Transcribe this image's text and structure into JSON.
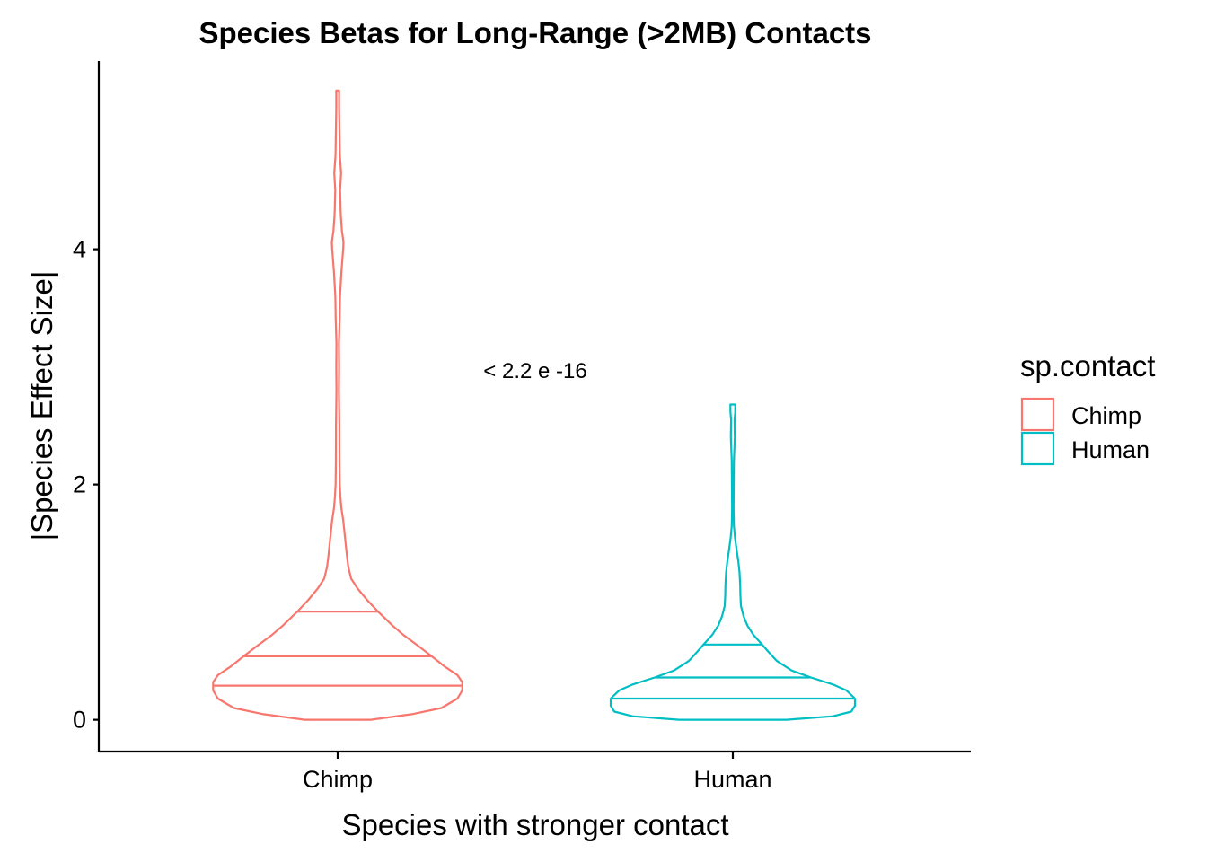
{
  "chart_data": {
    "type": "violin",
    "title": "Species Betas for Long-Range (>2MB) Contacts",
    "xlabel": "Species with stronger contact",
    "ylabel": "|Species Effect Size|",
    "categories": [
      "Chimp",
      "Human"
    ],
    "ylim": [
      -0.27,
      5.6
    ],
    "yticks": [
      0,
      2,
      4
    ],
    "grid": false,
    "annotation": "< 2.2 e -16",
    "legend": {
      "title": "sp.contact",
      "position": "right",
      "entries": [
        {
          "label": "Chimp",
          "color": "#F8766D"
        },
        {
          "label": "Human",
          "color": "#00BFC4"
        }
      ]
    },
    "series": [
      {
        "name": "Chimp",
        "color": "#F8766D",
        "quantiles": [
          0.29,
          0.54,
          0.92
        ],
        "max": 5.35,
        "profile": [
          [
            0.0,
            0.27
          ],
          [
            0.05,
            0.62
          ],
          [
            0.1,
            0.85
          ],
          [
            0.18,
            0.98
          ],
          [
            0.25,
            1.02
          ],
          [
            0.32,
            1.02
          ],
          [
            0.38,
            0.98
          ],
          [
            0.45,
            0.88
          ],
          [
            0.54,
            0.77
          ],
          [
            0.62,
            0.67
          ],
          [
            0.72,
            0.54
          ],
          [
            0.8,
            0.45
          ],
          [
            0.92,
            0.33
          ],
          [
            1.02,
            0.24
          ],
          [
            1.12,
            0.16
          ],
          [
            1.2,
            0.11
          ],
          [
            1.3,
            0.087
          ],
          [
            1.4,
            0.075
          ],
          [
            1.55,
            0.06
          ],
          [
            1.7,
            0.045
          ],
          [
            1.8,
            0.03
          ],
          [
            1.9,
            0.022
          ],
          [
            2.0,
            0.017
          ],
          [
            2.2,
            0.015
          ],
          [
            2.5,
            0.014
          ],
          [
            2.8,
            0.01
          ],
          [
            3.0,
            0.012
          ],
          [
            3.2,
            0.01
          ],
          [
            3.4,
            0.016
          ],
          [
            3.6,
            0.019
          ],
          [
            3.8,
            0.03
          ],
          [
            4.0,
            0.045
          ],
          [
            4.06,
            0.048
          ],
          [
            4.15,
            0.035
          ],
          [
            4.3,
            0.025
          ],
          [
            4.5,
            0.02
          ],
          [
            4.65,
            0.028
          ],
          [
            4.8,
            0.018
          ],
          [
            5.0,
            0.015
          ],
          [
            5.2,
            0.012
          ],
          [
            5.35,
            0.012
          ]
        ]
      },
      {
        "name": "Human",
        "color": "#00BFC4",
        "quantiles": [
          0.18,
          0.36,
          0.64
        ],
        "max": 2.68,
        "profile": [
          [
            0.0,
            0.44
          ],
          [
            0.03,
            0.82
          ],
          [
            0.07,
            0.97
          ],
          [
            0.12,
            1.0
          ],
          [
            0.18,
            1.0
          ],
          [
            0.25,
            0.93
          ],
          [
            0.3,
            0.82
          ],
          [
            0.36,
            0.64
          ],
          [
            0.42,
            0.48
          ],
          [
            0.5,
            0.36
          ],
          [
            0.58,
            0.29
          ],
          [
            0.64,
            0.24
          ],
          [
            0.72,
            0.17
          ],
          [
            0.8,
            0.12
          ],
          [
            0.88,
            0.088
          ],
          [
            0.97,
            0.066
          ],
          [
            1.07,
            0.062
          ],
          [
            1.15,
            0.06
          ],
          [
            1.25,
            0.055
          ],
          [
            1.35,
            0.045
          ],
          [
            1.45,
            0.03
          ],
          [
            1.55,
            0.018
          ],
          [
            1.65,
            0.009
          ],
          [
            1.8,
            0.006
          ],
          [
            2.0,
            0.007
          ],
          [
            2.2,
            0.009
          ],
          [
            2.4,
            0.016
          ],
          [
            2.55,
            0.014
          ],
          [
            2.62,
            0.02
          ],
          [
            2.68,
            0.02
          ]
        ]
      }
    ]
  }
}
